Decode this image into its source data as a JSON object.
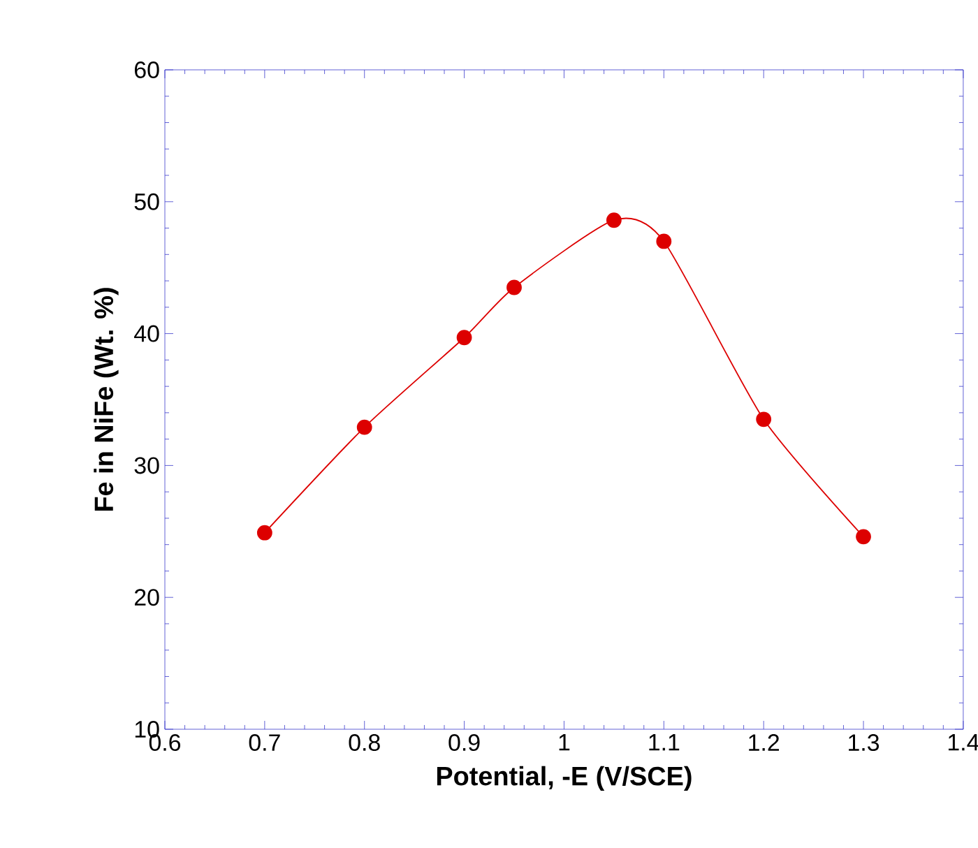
{
  "chart_data": {
    "type": "line",
    "xlabel": "Potential, -E (V/SCE)",
    "ylabel": "Fe in NiFe (Wt. %)",
    "x": [
      0.7,
      0.8,
      0.9,
      0.95,
      1.05,
      1.1,
      1.2,
      1.3
    ],
    "series": [
      {
        "color": "#dd0000",
        "values": [
          24.9,
          32.9,
          39.7,
          43.5,
          48.6,
          47.0,
          33.5,
          24.6
        ]
      }
    ],
    "xlim": [
      0.6,
      1.4
    ],
    "ylim": [
      10,
      60
    ],
    "xticks": [
      0.6,
      0.7,
      0.8,
      0.9,
      {
        "value": 1.0,
        "label": "1"
      },
      1.1,
      1.2,
      1.3,
      1.4
    ],
    "yticks": [
      10,
      20,
      30,
      40,
      50,
      60
    ],
    "marker": "circle",
    "line_style": "solid",
    "grid": false
  }
}
